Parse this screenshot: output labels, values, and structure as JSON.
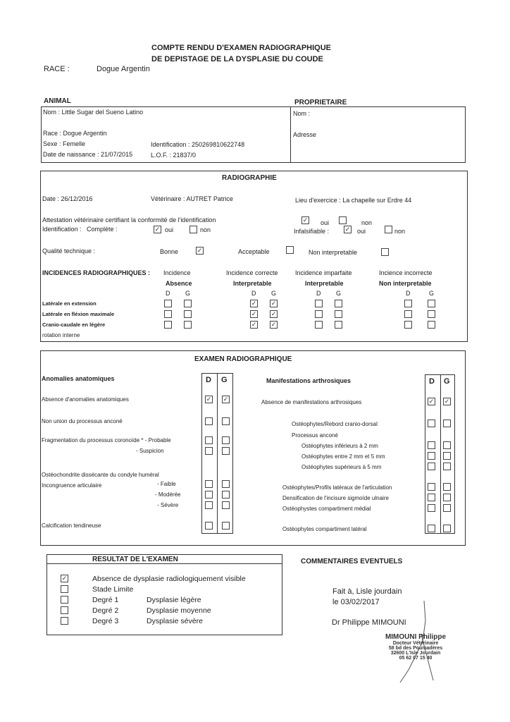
{
  "header": {
    "title_line1": "COMPTE RENDU D'EXAMEN RADIOGRAPHIQUE",
    "title_line2": "DE DEPISTAGE DE LA DYSPLASIE DU COUDE",
    "race_label": "RACE :",
    "race_value": "Dogue Argentin"
  },
  "animal": {
    "section": "ANIMAL",
    "nom": "Nom : Little Sugar  del Sueno Latino",
    "race": "Race : Dogue Argentin",
    "sexe": "Sexe : Femelle",
    "identification": "Identification : 250269810622748",
    "naissance": "Date de naissance : 21/07/2015",
    "lof": "L.O.F. :  21837/0"
  },
  "proprietaire": {
    "section": "PROPRIETAIRE",
    "nom": "Nom :",
    "adresse": "Adresse"
  },
  "radiographie": {
    "title": "RADIOGRAPHIE",
    "date": "Date : 26/12/2016",
    "veterinaire": "Vétérinaire : AUTRET Patrice",
    "lieu": "Lieu d'exercice : La chapelle sur Erdre 44",
    "attestation": "Attestation vétérinaire certifiant la conformité de l'identification",
    "attestation_oui": true,
    "attestation_non": false,
    "identification": "Identification :",
    "complete": "Complète :",
    "complete_oui": true,
    "complete_non": false,
    "infalsifiable": "Infalsifiable :",
    "infalsifiable_oui": true,
    "infalsifiable_non": false,
    "oui": "oui",
    "non": "non",
    "qualite": "Qualité technique :",
    "bonne": "Bonne",
    "acceptable": "Acceptable",
    "non_interpretable": "Non interpretable",
    "qualite_value": "Bonne",
    "incidences_label": "INCIDENCES RADIOGRAPHIQUES :",
    "columns": [
      {
        "top": "Incidence",
        "bottom": "Absence"
      },
      {
        "top": "Incidence correcte",
        "bottom": "Interpretable"
      },
      {
        "top": "Incidence imparfaite",
        "bottom": "Interpretable"
      },
      {
        "top": "Incience incorrecte",
        "bottom": "Non interpretable"
      }
    ],
    "d": "D",
    "g": "G",
    "rows": [
      {
        "label": "Latérale en extension",
        "checks": [
          [
            false,
            false
          ],
          [
            true,
            true
          ],
          [
            false,
            false
          ],
          [
            false,
            false
          ]
        ]
      },
      {
        "label": "Latérale en fléxion maximale",
        "checks": [
          [
            false,
            false
          ],
          [
            true,
            true
          ],
          [
            false,
            false
          ],
          [
            false,
            false
          ]
        ]
      },
      {
        "label": "Cranio-caudale en légère",
        "checks": [
          [
            false,
            false
          ],
          [
            true,
            true
          ],
          [
            false,
            false
          ],
          [
            false,
            false
          ]
        ]
      }
    ],
    "row3_cont": "rotation interne"
  },
  "examen": {
    "title": "EXAMEN RADIOGRAPHIQUE",
    "d": "D",
    "g": "G",
    "left_heading": "Anomalies anatomiques",
    "right_heading": "Manifestations arthrosiques",
    "left_rows": [
      {
        "label": "Absence d'anomalies anatomiques",
        "d": true,
        "g": true
      },
      {
        "label": "Non union du processus anconé",
        "d": false,
        "g": false
      },
      {
        "label": "Fragmentation du processus coronoïde *   - Probable",
        "d": false,
        "g": false
      },
      {
        "label": "- Suspicion",
        "d": false,
        "g": false
      },
      {
        "label": "- Faible",
        "d": false,
        "g": false
      },
      {
        "label": "- Modérée",
        "d": false,
        "g": false
      },
      {
        "label": "- Sévère",
        "d": false,
        "g": false
      },
      {
        "label": "Calcification tendineuse",
        "d": false,
        "g": false
      }
    ],
    "left_extra": [
      "Ostéochondrite dissécante du condyle huméral",
      "Incongruence articulaire"
    ],
    "right_rows": [
      {
        "label": "Absence de manifestations arthrosiques",
        "d": true,
        "g": true
      },
      {
        "label": "Ostéophytes/Rebord cranio-dorsal",
        "d": false,
        "g": false
      },
      {
        "label": "Ostéophytes inférieurs à 2 mm",
        "d": false,
        "g": false
      },
      {
        "label": "Ostéophytes entre 2 mm et 5 mm",
        "d": false,
        "g": false
      },
      {
        "label": "Ostéophytes supérieurs à 5 mm",
        "d": false,
        "g": false
      },
      {
        "label": "Ostéophytes/Profils latéraux de l'articulation",
        "d": false,
        "g": false
      },
      {
        "label": "Densification de l'incisure sigmoïde ulnaire",
        "d": false,
        "g": false
      },
      {
        "label": "Ostéophystes compartiment médial",
        "d": false,
        "g": false
      },
      {
        "label": "Ostéophytes compartiment latéral",
        "d": false,
        "g": false
      }
    ],
    "right_extra": "Processus anconé"
  },
  "resultat": {
    "title": "RESULTAT DE L'EXAMEN",
    "rows": [
      {
        "grade": "",
        "label": "Absence de dysplasie radiologiquement visible",
        "checked": true
      },
      {
        "grade": "",
        "label": "Stade Limite",
        "checked": false
      },
      {
        "grade": "Degré 1",
        "label": "Dysplasie légère",
        "checked": false
      },
      {
        "grade": "Degré 2",
        "label": "Dysplasie moyenne",
        "checked": false
      },
      {
        "grade": "Degré 3",
        "label": "Dysplasie sévère",
        "checked": false
      }
    ]
  },
  "commentaires": {
    "title": "COMMENTAIRES EVENTUELS"
  },
  "signature": {
    "fait": "Fait à, Lisle jourdain",
    "date": " le 03/02/2017",
    "doctor": "Dr Philippe MIMOUNI",
    "stamp": [
      "MIMOUNI Philippe",
      "Docteur Vétérinaire",
      "58 bd des Poumadères",
      "32600 L'Isle Jourdain",
      "05 62 07 15 40"
    ]
  }
}
